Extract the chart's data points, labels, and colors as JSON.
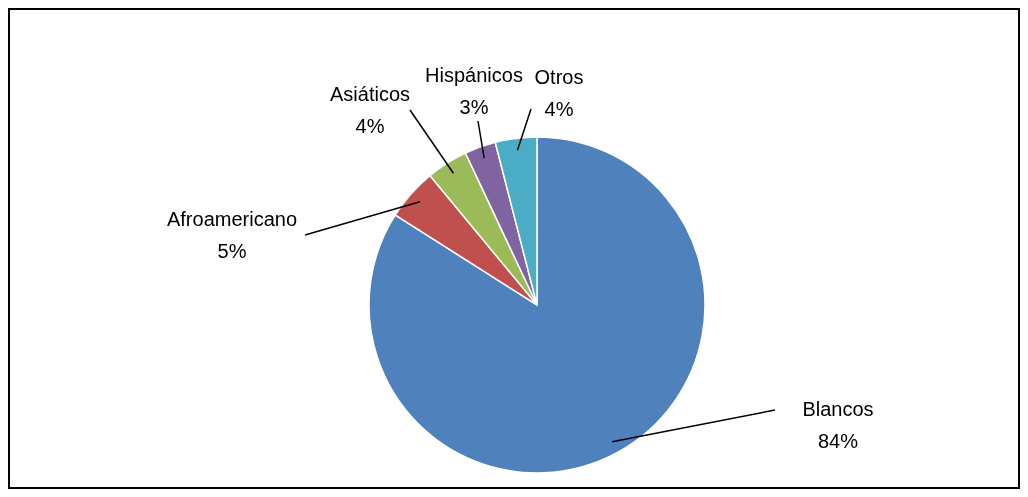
{
  "chart_data": {
    "type": "pie",
    "categories": [
      "Blancos",
      "Afroamericano",
      "Asiáticos",
      "Hispánicos",
      "Otros"
    ],
    "values": [
      84,
      5,
      4,
      3,
      4
    ],
    "colors": [
      "#4f81bd",
      "#c0504d",
      "#9bbb59",
      "#8064a2",
      "#4bacc6"
    ],
    "value_labels": [
      "84%",
      "5%",
      "4%",
      "3%",
      "4%"
    ]
  }
}
